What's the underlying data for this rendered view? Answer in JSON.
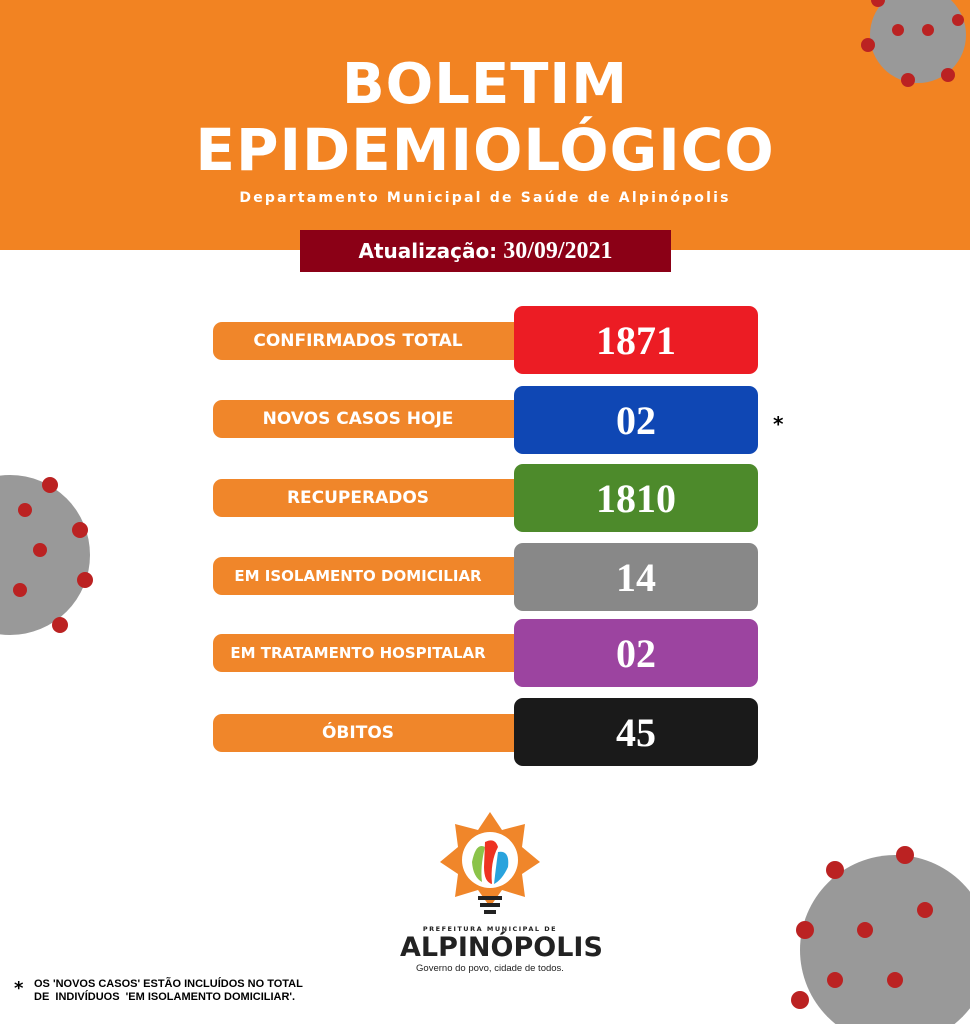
{
  "header": {
    "title_line1": "BOLETIM",
    "title_line2": "EPIDEMIOLÓGICO",
    "subtitle": "Departamento Municipal de Saúde de Alpinópolis"
  },
  "update": {
    "label": "Atualização:",
    "date": "30/09/2021"
  },
  "stats": [
    {
      "label": "CONFIRMADOS TOTAL",
      "value": "1871",
      "color": "#ec1c24"
    },
    {
      "label": "NOVOS CASOS HOJE",
      "value": "02",
      "color": "#0f47b4",
      "marker": "*"
    },
    {
      "label": "RECUPERADOS",
      "value": "1810",
      "color": "#4d8a2b"
    },
    {
      "label": "EM ISOLAMENTO DOMICILIAR",
      "value": "14",
      "color": "#888888"
    },
    {
      "label": "EM TRATAMENTO HOSPITALAR",
      "value": "02",
      "color": "#9c44a0"
    },
    {
      "label": "ÓBITOS",
      "value": "45",
      "color": "#1a1a1a"
    }
  ],
  "footnote": {
    "marker": "*",
    "line1": "OS 'NOVOS CASOS' ESTÃO INCLUÍDOS NO TOTAL",
    "line2": "DE  INDIVÍDUOS  'EM ISOLAMENTO DOMICILIAR'."
  },
  "logo": {
    "pre": "PREFEITURA MUNICIPAL DE",
    "name": "ALPINÓPOLIS",
    "slogan": "Governo do povo, cidade de todos."
  },
  "colors": {
    "header": "#f28322",
    "label": "#f0862a",
    "update_bg": "#8b0016"
  }
}
